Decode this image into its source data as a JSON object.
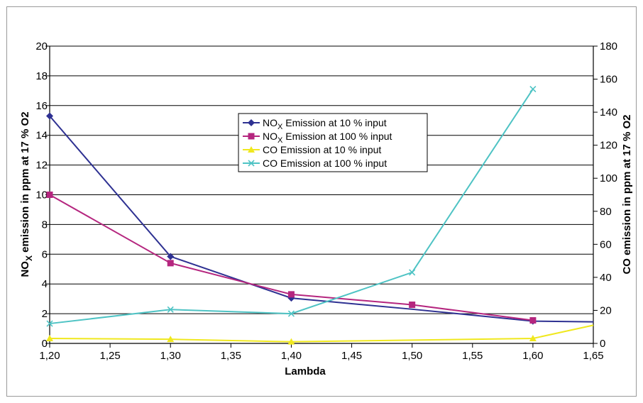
{
  "chart_data": {
    "type": "line",
    "title": "",
    "xlabel": "Lambda",
    "ylabel_left_prefix": "NO",
    "ylabel_left_sub": "X",
    "ylabel_left_suffix": " emission in ppm at 17 % O2",
    "ylabel_right": "CO emission in ppm at 17 % O2",
    "xlim": [
      1.2,
      1.65
    ],
    "x_ticks": [
      "1,20",
      "1,25",
      "1,30",
      "1,35",
      "1,40",
      "1,45",
      "1,50",
      "1,55",
      "1,60",
      "1,65"
    ],
    "ylim_left": [
      0,
      20
    ],
    "y_ticks_left": [
      "0",
      "2",
      "4",
      "6",
      "8",
      "10",
      "12",
      "14",
      "16",
      "18",
      "20"
    ],
    "ylim_right": [
      0,
      180
    ],
    "y_ticks_right": [
      "0",
      "20",
      "40",
      "60",
      "80",
      "100",
      "120",
      "140",
      "160",
      "180"
    ],
    "grid": "horizontal",
    "legend_position": "center",
    "series": [
      {
        "name_prefix": "NO",
        "name_sub": "X",
        "name_suffix": " Emission at 10 % input",
        "axis": "left",
        "color": "#2e3192",
        "marker": "diamond",
        "x": [
          1.2,
          1.3,
          1.4,
          1.5,
          1.6,
          1.65
        ],
        "y": [
          15.3,
          5.85,
          3.05,
          2.3,
          1.5,
          1.45
        ],
        "marked": [
          true,
          true,
          true,
          false,
          true,
          false
        ]
      },
      {
        "name_prefix": "NO",
        "name_sub": "X",
        "name_suffix": " Emission at 100 % input",
        "axis": "left",
        "color": "#b5267f",
        "marker": "square",
        "x": [
          1.2,
          1.3,
          1.4,
          1.5,
          1.6
        ],
        "y": [
          10.0,
          5.4,
          3.3,
          2.6,
          1.55
        ],
        "marked": [
          true,
          true,
          true,
          true,
          true
        ]
      },
      {
        "name": "CO Emission at 10 % input",
        "axis": "right",
        "color": "#f0e81e",
        "marker": "triangle",
        "x": [
          1.2,
          1.3,
          1.4,
          1.5,
          1.6,
          1.65
        ],
        "y": [
          3.0,
          2.5,
          1.0,
          2.0,
          3.0,
          11.0
        ],
        "marked": [
          true,
          true,
          true,
          false,
          true,
          false
        ]
      },
      {
        "name": "CO Emission at 100 % input",
        "axis": "right",
        "color": "#4ec3c4",
        "marker": "x",
        "x": [
          1.2,
          1.3,
          1.4,
          1.5,
          1.6
        ],
        "y": [
          12.0,
          20.5,
          18.0,
          43.0,
          154.0
        ],
        "marked": [
          true,
          true,
          true,
          true,
          true
        ]
      }
    ]
  }
}
